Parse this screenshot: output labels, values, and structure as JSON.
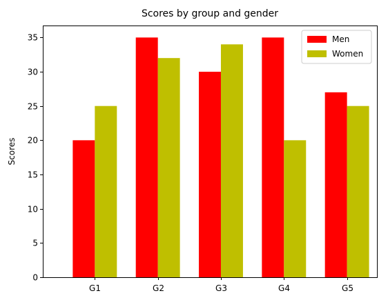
{
  "chart_data": {
    "type": "bar",
    "title": "Scores by group and gender",
    "xlabel": "",
    "ylabel": "Scores",
    "categories": [
      "G1",
      "G2",
      "G3",
      "G4",
      "G5"
    ],
    "series": [
      {
        "name": "Men",
        "values": [
          20,
          35,
          30,
          35,
          27
        ],
        "color": "#ff0000"
      },
      {
        "name": "Women",
        "values": [
          25,
          32,
          34,
          20,
          25
        ],
        "color": "#bfbf00"
      }
    ],
    "ylim": [
      0,
      36.75
    ],
    "yticks": [
      0,
      5,
      10,
      15,
      20,
      25,
      30,
      35
    ],
    "grid": false,
    "legend_position": "top-right"
  }
}
